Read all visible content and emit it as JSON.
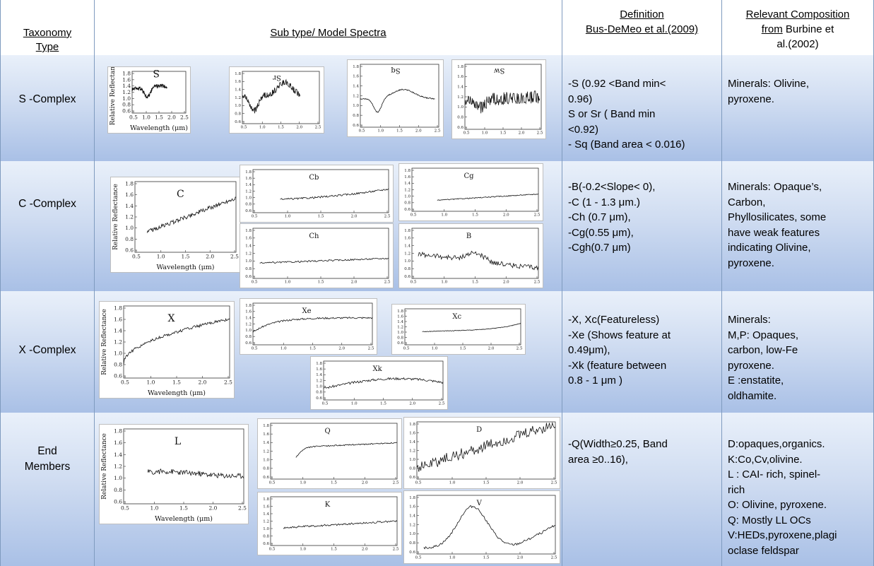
{
  "headers": {
    "col0": [
      "Taxonomy",
      "Type"
    ],
    "col1": "Sub type/ Model Spectra",
    "col2": [
      "Definition",
      "Bus-DeMeo et al.(2009)"
    ],
    "col3_prefix": "from",
    "col3": [
      "Relevant Composition",
      "Burbine et",
      "al.(2002)"
    ]
  },
  "rows": [
    {
      "type": "S -Complex",
      "definition": [
        "-S (0.92 <Band min<",
        "0.96)",
        "S or Sr ( Band min",
        "<0.92)",
        "- Sq (Band area < 0.016)"
      ],
      "composition": [
        "Minerals: Olivine,",
        "pyroxene."
      ],
      "plots": [
        {
          "title": "S",
          "mirrored": true,
          "xlabel": "Wavelength (μm)",
          "ylabel": "Relative Reflectance"
        },
        {
          "title": "Sr",
          "mirrored": true
        },
        {
          "title": "Sq",
          "mirrored": true
        },
        {
          "title": "Sw",
          "mirrored": true
        }
      ]
    },
    {
      "type": "C -Complex",
      "definition": [
        "-B(-0.2<Slope< 0),",
        "-C (1 - 1.3 μm.)",
        "-Ch (0.7 μm),",
        "-Cg(0.55 μm),",
        "-Cgh(0.7 μm)"
      ],
      "composition": [
        "Minerals: Opaque’s,",
        "Carbon,",
        "Phyllosilicates, some",
        "have weak features",
        "indicating Olivine,",
        "pyroxene."
      ],
      "plots": [
        {
          "title": "C",
          "xlabel": "Wavelength (μm)",
          "ylabel": "Relative Reflectance"
        },
        {
          "title": "Cb"
        },
        {
          "title": "Cg"
        },
        {
          "title": "Ch"
        },
        {
          "title": "B"
        }
      ]
    },
    {
      "type": "X -Complex",
      "definition": [
        "-X, Xc(Featureless)",
        "-Xe (Shows feature at",
        "0.49μm),",
        "-Xk (feature between",
        "0.8 - 1 μm )"
      ],
      "composition": [
        "Minerals:",
        "M,P: Opaques,",
        "carbon, low-Fe",
        "pyroxene.",
        "E :enstatite,",
        "oldhamite."
      ],
      "plots": [
        {
          "title": "X",
          "xlabel": "Wavelength (μm)",
          "ylabel": "Relative Reflectance"
        },
        {
          "title": "Xe"
        },
        {
          "title": "Xc"
        },
        {
          "title": "Xk"
        }
      ]
    },
    {
      "type": [
        "End",
        "Members"
      ],
      "definition": [
        "-Q(Width≥0.25, Band",
        "area ≥0..16),"
      ],
      "composition": [
        "D:opaques,organics.",
        "K:Co,Cv,olivine.",
        "L : CAI- rich, spinel-",
        "rich",
        "O: Olivine, pyroxene.",
        "Q: Mostly LL OCs",
        "V:HEDs,pyroxene,plagi",
        "oclase feldspar"
      ],
      "plots": [
        {
          "title": "L",
          "xlabel": "Wavelength (μm)",
          "ylabel": "Relative Reflectance"
        },
        {
          "title": "Q"
        },
        {
          "title": "D"
        },
        {
          "title": "K"
        },
        {
          "title": "V"
        }
      ]
    }
  ],
  "axis": {
    "xticks": [
      "0.5",
      "1.0",
      "1.5",
      "2.0",
      "2.5"
    ],
    "yticks": [
      "0.6",
      "0.8",
      "1.0",
      "1.2",
      "1.4",
      "1.6",
      "1.8"
    ]
  }
}
